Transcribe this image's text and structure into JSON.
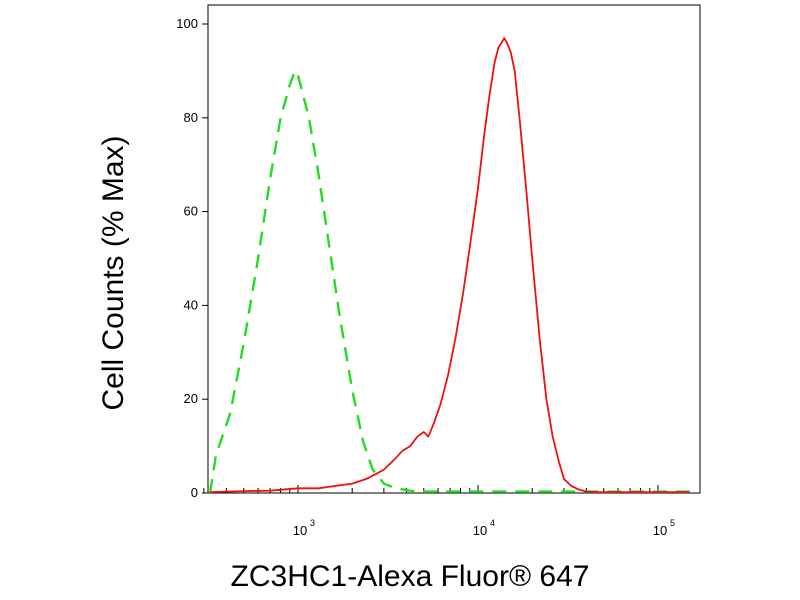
{
  "chart_data": {
    "type": "line",
    "title": "",
    "xlabel": "ZC3HC1-Alexa Fluor® 647",
    "ylabel": "Cell Counts (% Max)",
    "x_scale": "log",
    "xlim": [
      300,
      150000
    ],
    "ylim": [
      0,
      100
    ],
    "grid": false,
    "legend": "none",
    "y_ticks": [
      "0",
      "20",
      "40",
      "60",
      "80",
      "100"
    ],
    "x_ticks": [
      {
        "base": "10",
        "exp": "3",
        "value": 1000
      },
      {
        "base": "10",
        "exp": "4",
        "value": 10000
      },
      {
        "base": "10",
        "exp": "5",
        "value": 100000
      }
    ],
    "series": [
      {
        "color": "#22dd22",
        "style": "dashed",
        "x": [
          300,
          350,
          420,
          500,
          600,
          700,
          800,
          900,
          960,
          1000,
          1050,
          1150,
          1300,
          1500,
          1700,
          2000,
          2300,
          2600,
          3000,
          3500,
          4200,
          5000,
          10000,
          30000,
          150000
        ],
        "y": [
          0,
          8,
          17,
          32,
          50,
          67,
          80,
          87,
          90,
          89,
          86,
          80,
          68,
          52,
          38,
          22,
          11,
          5,
          2,
          1,
          0.5,
          0.3,
          0.3,
          0.3,
          0.3
        ]
      },
      {
        "color": "#ee1111",
        "style": "solid",
        "x": [
          300,
          500,
          700,
          1000,
          1300,
          1600,
          2000,
          2400,
          2700,
          3000,
          3400,
          3800,
          4200,
          4600,
          5000,
          5300,
          5700,
          6200,
          6800,
          7500,
          8300,
          9200,
          10000,
          10800,
          11600,
          12400,
          13000,
          13500,
          14000,
          14500,
          15200,
          16000,
          17000,
          18500,
          20000,
          22000,
          24000,
          26000,
          28000,
          30000,
          33000,
          36000,
          40000,
          45000,
          60000,
          100000,
          150000
        ],
        "y": [
          0.2,
          0.4,
          0.5,
          1,
          1,
          1.5,
          2,
          3,
          4,
          5,
          7,
          9,
          10,
          12,
          13,
          12,
          15,
          19,
          25,
          33,
          43,
          55,
          65,
          76,
          85,
          92,
          95,
          96,
          97,
          96,
          94,
          90,
          80,
          65,
          50,
          33,
          20,
          12,
          7,
          3,
          1.5,
          0.8,
          0.3,
          0.2,
          0.2,
          0.2,
          0.2
        ]
      }
    ]
  }
}
